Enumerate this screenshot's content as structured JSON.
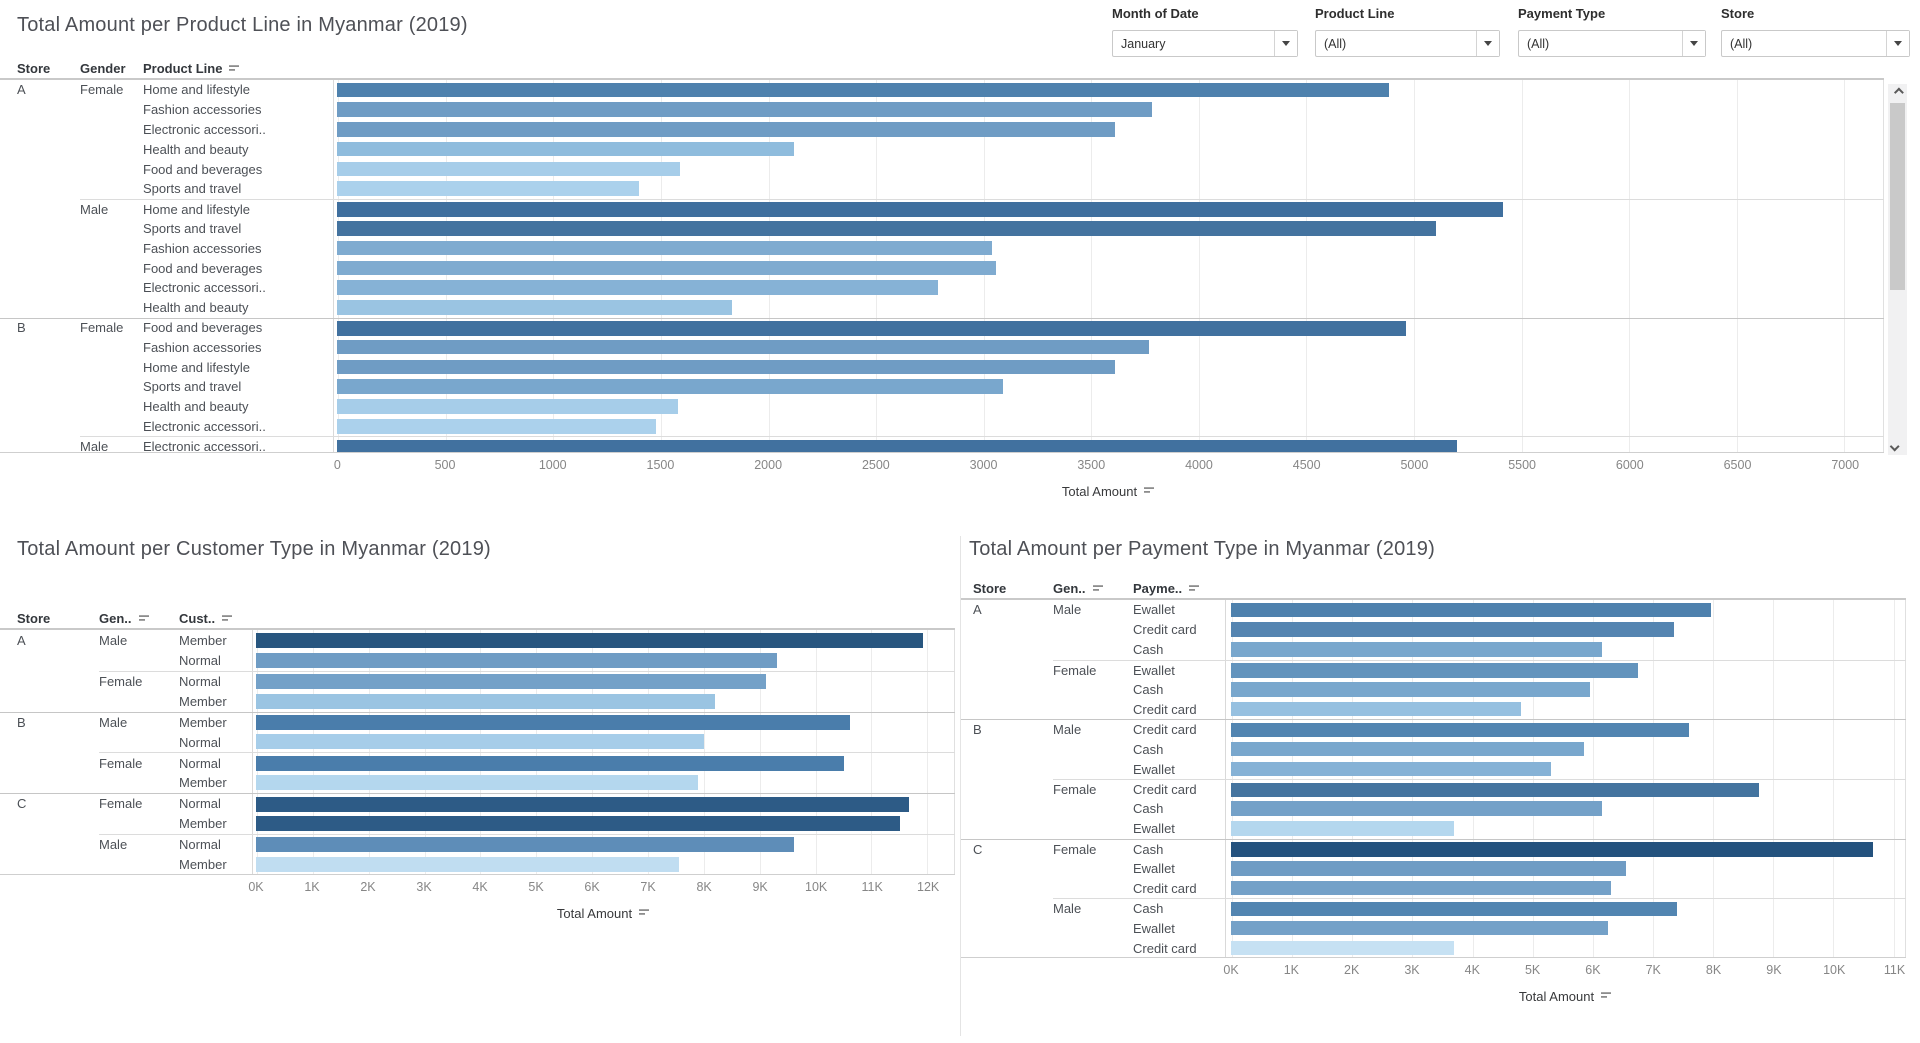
{
  "filters": {
    "items": [
      {
        "label": "Month of Date",
        "value": "January"
      },
      {
        "label": "Product Line",
        "value": "(All)"
      },
      {
        "label": "Payment Type",
        "value": "(All)"
      },
      {
        "label": "Store",
        "value": "(All)"
      }
    ]
  },
  "chart_data": [
    {
      "type": "bar",
      "title": "Total Amount per Product Line in Myanmar (2019)",
      "columns": [
        "Store",
        "Gender",
        "Product Line"
      ],
      "sorted_cols": [
        2
      ],
      "xlabel": "Total Amount",
      "xlim": [
        0,
        7000
      ],
      "tick_step": 500,
      "tick_format": "plain",
      "legend": "none",
      "grid": true,
      "note": "vertical scrollbar present; last row (B / Male) clipped by axis",
      "rows": [
        {
          "store": "A",
          "gender": "Female",
          "label": "Home and lifestyle",
          "value": 4880,
          "color": "#4e81ad"
        },
        {
          "store": "A",
          "gender": "Female",
          "label": "Fashion accessories",
          "value": 3780,
          "color": "#6f9cc4"
        },
        {
          "store": "A",
          "gender": "Female",
          "label": "Electronic accessori..",
          "value": 3610,
          "color": "#6f9cc4"
        },
        {
          "store": "A",
          "gender": "Female",
          "label": "Health and beauty",
          "value": 2120,
          "color": "#8fbcdd"
        },
        {
          "store": "A",
          "gender": "Female",
          "label": "Food and beverages",
          "value": 1590,
          "color": "#a6cde9"
        },
        {
          "store": "A",
          "gender": "Female",
          "label": "Sports and travel",
          "value": 1400,
          "color": "#abd1ec"
        },
        {
          "store": "A",
          "gender": "Male",
          "label": "Home and lifestyle",
          "value": 5410,
          "color": "#3f6f9e"
        },
        {
          "store": "A",
          "gender": "Male",
          "label": "Sports and travel",
          "value": 5100,
          "color": "#44739f"
        },
        {
          "store": "A",
          "gender": "Male",
          "label": "Fashion accessories",
          "value": 3040,
          "color": "#7fabd0"
        },
        {
          "store": "A",
          "gender": "Male",
          "label": "Food and beverages",
          "value": 3060,
          "color": "#7fabd0"
        },
        {
          "store": "A",
          "gender": "Male",
          "label": "Electronic accessori..",
          "value": 2790,
          "color": "#86b2d6"
        },
        {
          "store": "A",
          "gender": "Male",
          "label": "Health and beauty",
          "value": 1830,
          "color": "#9ac4e2"
        },
        {
          "store": "B",
          "gender": "Female",
          "label": "Food and beverages",
          "value": 4960,
          "color": "#41719f"
        },
        {
          "store": "B",
          "gender": "Female",
          "label": "Fashion accessories",
          "value": 3770,
          "color": "#6f9cc4"
        },
        {
          "store": "B",
          "gender": "Female",
          "label": "Home and lifestyle",
          "value": 3610,
          "color": "#6f9cc4"
        },
        {
          "store": "B",
          "gender": "Female",
          "label": "Sports and travel",
          "value": 3090,
          "color": "#79a7cd"
        },
        {
          "store": "B",
          "gender": "Female",
          "label": "Health and beauty",
          "value": 1580,
          "color": "#a6cde9"
        },
        {
          "store": "B",
          "gender": "Female",
          "label": "Electronic accessori..",
          "value": 1480,
          "color": "#abd1ec"
        },
        {
          "store": "B",
          "gender": "Male",
          "label": "Electronic accessori..",
          "value": 5200,
          "color": "#41719f"
        }
      ]
    },
    {
      "type": "bar",
      "title": "Total Amount per Customer Type in Myanmar (2019)",
      "columns": [
        "Store",
        "Gen..",
        "Cust.."
      ],
      "sorted_cols": [
        1,
        2
      ],
      "xlabel": "Total Amount",
      "xlim": [
        0,
        12000
      ],
      "tick_step": 1000,
      "tick_format": "k",
      "legend": "none",
      "grid": true,
      "rows": [
        {
          "store": "A",
          "gender": "Male",
          "label": "Member",
          "value": 11900,
          "color": "#28567f"
        },
        {
          "store": "A",
          "gender": "Male",
          "label": "Normal",
          "value": 9300,
          "color": "#6f9cc4"
        },
        {
          "store": "A",
          "gender": "Female",
          "label": "Normal",
          "value": 9100,
          "color": "#74a1c8"
        },
        {
          "store": "A",
          "gender": "Female",
          "label": "Member",
          "value": 8200,
          "color": "#9ac4e2"
        },
        {
          "store": "B",
          "gender": "Male",
          "label": "Member",
          "value": 10600,
          "color": "#4a7dab"
        },
        {
          "store": "B",
          "gender": "Male",
          "label": "Normal",
          "value": 8000,
          "color": "#a6cde9"
        },
        {
          "store": "B",
          "gender": "Female",
          "label": "Normal",
          "value": 10500,
          "color": "#4a7dab"
        },
        {
          "store": "B",
          "gender": "Female",
          "label": "Member",
          "value": 7900,
          "color": "#b4d7ee"
        },
        {
          "store": "C",
          "gender": "Female",
          "label": "Normal",
          "value": 11650,
          "color": "#2d5b86"
        },
        {
          "store": "C",
          "gender": "Female",
          "label": "Member",
          "value": 11500,
          "color": "#2d5b86"
        },
        {
          "store": "C",
          "gender": "Male",
          "label": "Normal",
          "value": 9600,
          "color": "#5e8db8"
        },
        {
          "store": "C",
          "gender": "Male",
          "label": "Member",
          "value": 7550,
          "color": "#c0ddf1"
        }
      ]
    },
    {
      "type": "bar",
      "title": "Total Amount per Payment Type in Myanmar (2019)",
      "columns": [
        "Store",
        "Gen..",
        "Payme.."
      ],
      "sorted_cols": [
        1,
        2
      ],
      "xlabel": "Total Amount",
      "xlim": [
        0,
        11000
      ],
      "tick_step": 1000,
      "tick_format": "k",
      "legend": "none",
      "grid": true,
      "rows": [
        {
          "store": "A",
          "gender": "Male",
          "label": "Ewallet",
          "value": 7950,
          "color": "#4e81ad"
        },
        {
          "store": "A",
          "gender": "Male",
          "label": "Credit card",
          "value": 7350,
          "color": "#5585b1"
        },
        {
          "store": "A",
          "gender": "Male",
          "label": "Cash",
          "value": 6150,
          "color": "#79a7cd"
        },
        {
          "store": "A",
          "gender": "Female",
          "label": "Ewallet",
          "value": 6750,
          "color": "#6394bd"
        },
        {
          "store": "A",
          "gender": "Female",
          "label": "Cash",
          "value": 5950,
          "color": "#79a7cd"
        },
        {
          "store": "A",
          "gender": "Female",
          "label": "Credit card",
          "value": 4800,
          "color": "#96c0e0"
        },
        {
          "store": "B",
          "gender": "Male",
          "label": "Credit card",
          "value": 7600,
          "color": "#5285b1"
        },
        {
          "store": "B",
          "gender": "Male",
          "label": "Cash",
          "value": 5850,
          "color": "#79a7cd"
        },
        {
          "store": "B",
          "gender": "Male",
          "label": "Ewallet",
          "value": 5300,
          "color": "#86b2d6"
        },
        {
          "store": "B",
          "gender": "Female",
          "label": "Credit card",
          "value": 8750,
          "color": "#44749f"
        },
        {
          "store": "B",
          "gender": "Female",
          "label": "Cash",
          "value": 6150,
          "color": "#74a1c8"
        },
        {
          "store": "B",
          "gender": "Female",
          "label": "Ewallet",
          "value": 3700,
          "color": "#b4d7ee"
        },
        {
          "store": "C",
          "gender": "Female",
          "label": "Cash",
          "value": 10650,
          "color": "#24527e"
        },
        {
          "store": "C",
          "gender": "Female",
          "label": "Ewallet",
          "value": 6550,
          "color": "#6f9cc4"
        },
        {
          "store": "C",
          "gender": "Female",
          "label": "Credit card",
          "value": 6300,
          "color": "#74a1c8"
        },
        {
          "store": "C",
          "gender": "Male",
          "label": "Cash",
          "value": 7400,
          "color": "#5285b1"
        },
        {
          "store": "C",
          "gender": "Male",
          "label": "Ewallet",
          "value": 6250,
          "color": "#74a1c8"
        },
        {
          "store": "C",
          "gender": "Male",
          "label": "Credit card",
          "value": 3700,
          "color": "#c6e1f3"
        }
      ]
    }
  ],
  "colors": {
    "bar_darkest": "#24527e",
    "bar_lightest": "#c6e1f3",
    "gridline": "#ececec",
    "separator": "#c6c6c6",
    "axis_text": "#868686"
  }
}
